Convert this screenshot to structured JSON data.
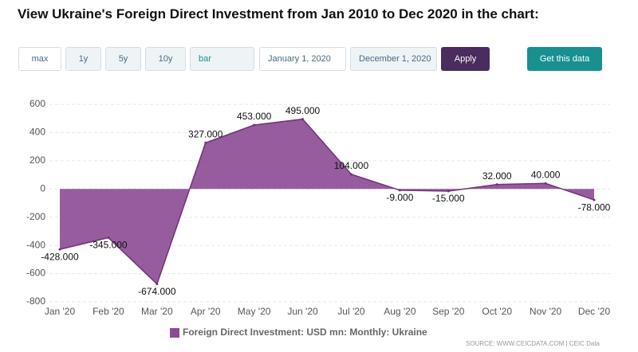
{
  "header": {
    "title": "View Ukraine's Foreign Direct Investment from Jan 2010 to Dec 2020 in the chart:"
  },
  "controls": {
    "ranges": [
      "max",
      "1y",
      "5y",
      "10y"
    ],
    "chart_type": "bar",
    "start_date": "January 1, 2020",
    "end_date": "December 1, 2020",
    "apply": "Apply",
    "get_data": "Get this data"
  },
  "chart_data": {
    "type": "area",
    "categories": [
      "Jan '20",
      "Feb '20",
      "Mar '20",
      "Apr '20",
      "May '20",
      "Jun '20",
      "Jul '20",
      "Aug '20",
      "Sep '20",
      "Oct '20",
      "Nov '20",
      "Dec '20"
    ],
    "series": [
      {
        "name": "Foreign Direct Investment: USD mn: Monthly: Ukraine",
        "color": "#8b4a93",
        "values": [
          -428,
          -345,
          -674,
          327,
          453,
          495,
          104,
          -9,
          -15,
          32,
          40,
          -78
        ],
        "value_labels": [
          "-428.000",
          "-345.000",
          "-674.000",
          "327.000",
          "453.000",
          "495.000",
          "104.000",
          "-9.000",
          "-15.000",
          "32.000",
          "40.000",
          "-78.000"
        ]
      }
    ],
    "ylim": [
      -800,
      600
    ],
    "yticks": [
      -800,
      -600,
      -400,
      -200,
      0,
      200,
      400,
      600
    ],
    "grid": true,
    "source": "SOURCE: WWW.CEICDATA.COM | CEIC Data"
  }
}
